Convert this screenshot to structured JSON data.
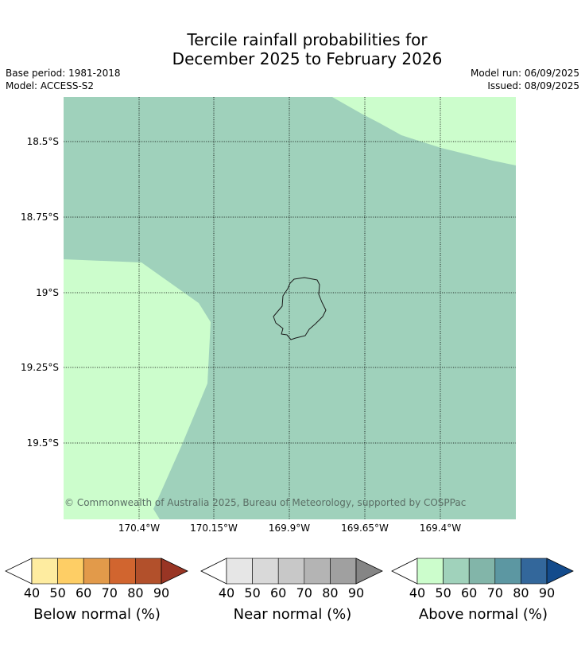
{
  "title": {
    "line1": "Tercile rainfall probabilities for",
    "line2": "December 2025 to February 2026"
  },
  "meta": {
    "base_period": "Base period: 1981-2018",
    "model": "Model: ACCESS-S2",
    "model_run": "Model run: 06/09/2025",
    "issued": "Issued: 08/09/2025"
  },
  "map": {
    "lat_labels": [
      "18.5°S",
      "18.75°S",
      "19°S",
      "19.25°S",
      "19.5°S"
    ],
    "lon_labels": [
      "170.4°W",
      "170.15°W",
      "169.9°W",
      "169.65°W",
      "169.4°W"
    ],
    "copyright": "© Commonwealth of Australia 2025, Bureau of Meteorology, supported by COSPPac",
    "background_color": "#9fd1bb",
    "highlight_color": "#ccfdcc",
    "coast_color": "#1a1a1a"
  },
  "legends": [
    {
      "label": "Below normal (%)",
      "ticks": [
        "40",
        "50",
        "60",
        "70",
        "80",
        "90"
      ],
      "colors": [
        "#ffffff",
        "#feeca0",
        "#fece65",
        "#e29a4a",
        "#d1652f",
        "#b2502b",
        "#993524"
      ]
    },
    {
      "label": "Near normal (%)",
      "ticks": [
        "40",
        "50",
        "60",
        "70",
        "80",
        "90"
      ],
      "colors": [
        "#ffffff",
        "#e6e6e6",
        "#d9d9d9",
        "#c8c8c8",
        "#b4b4b4",
        "#a0a0a0",
        "#858585"
      ]
    },
    {
      "label": "Above normal (%)",
      "ticks": [
        "40",
        "50",
        "60",
        "70",
        "80",
        "90"
      ],
      "colors": [
        "#ffffff",
        "#ccfdcc",
        "#a0d2bb",
        "#82b5a9",
        "#5c97a2",
        "#33679b",
        "#134b8c"
      ]
    }
  ]
}
